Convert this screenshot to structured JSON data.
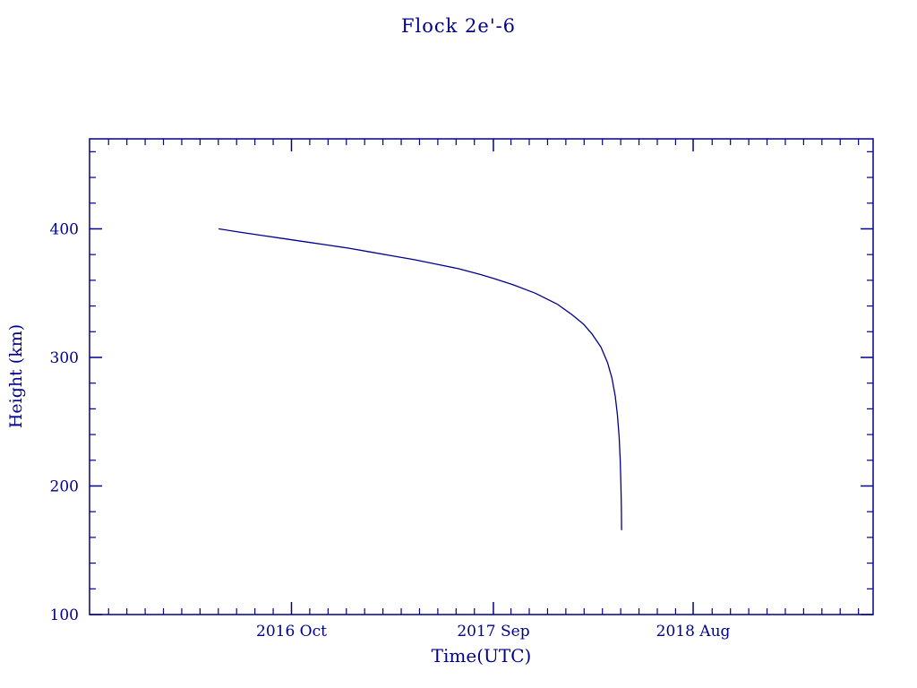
{
  "colors": {
    "ink": "#00008b",
    "background": "#ffffff"
  },
  "chart_data": {
    "type": "line",
    "title": "Flock 2e'-6",
    "xlabel": "Time(UTC)",
    "ylabel": "Height (km)",
    "xlim": [
      2015.87,
      2019.44
    ],
    "ylim": [
      100,
      470
    ],
    "grid": false,
    "legend": "none",
    "x_ticks": [
      {
        "value": 2016.79,
        "label": "2016 Oct"
      },
      {
        "value": 2017.71,
        "label": "2017 Sep"
      },
      {
        "value": 2018.62,
        "label": "2018 Aug"
      }
    ],
    "x_minor_tick_step_months": 1,
    "y_ticks": [
      {
        "value": 100,
        "label": "100"
      },
      {
        "value": 200,
        "label": "200"
      },
      {
        "value": 300,
        "label": "300"
      },
      {
        "value": 400,
        "label": "400"
      }
    ],
    "y_minor_tick_step": 20,
    "series": [
      {
        "name": "Flock 2e'-6 orbital height",
        "color": "#00008b",
        "points": [
          [
            2016.46,
            400
          ],
          [
            2016.55,
            397.5
          ],
          [
            2016.65,
            395
          ],
          [
            2016.75,
            392.5
          ],
          [
            2016.85,
            390
          ],
          [
            2016.95,
            387.5
          ],
          [
            2017.05,
            385
          ],
          [
            2017.15,
            382
          ],
          [
            2017.25,
            379
          ],
          [
            2017.35,
            376
          ],
          [
            2017.45,
            372.5
          ],
          [
            2017.55,
            369
          ],
          [
            2017.65,
            364.5
          ],
          [
            2017.71,
            361.5
          ],
          [
            2017.8,
            356.5
          ],
          [
            2017.9,
            350
          ],
          [
            2018.0,
            341.5
          ],
          [
            2018.07,
            333
          ],
          [
            2018.12,
            326
          ],
          [
            2018.16,
            318
          ],
          [
            2018.2,
            308
          ],
          [
            2018.23,
            296
          ],
          [
            2018.25,
            284
          ],
          [
            2018.265,
            270
          ],
          [
            2018.275,
            255
          ],
          [
            2018.283,
            238
          ],
          [
            2018.288,
            220
          ],
          [
            2018.291,
            200
          ],
          [
            2018.293,
            182
          ],
          [
            2018.294,
            166
          ]
        ]
      }
    ]
  }
}
